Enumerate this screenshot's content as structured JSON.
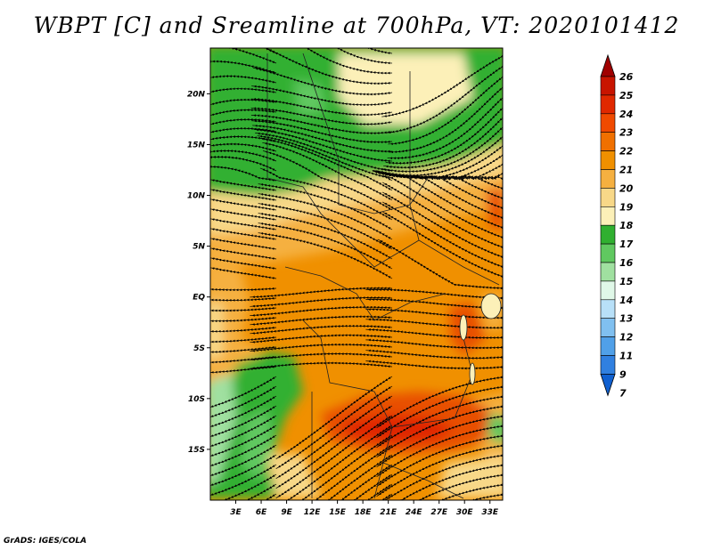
{
  "title": "WBPT [C] and Sreamline at 700hPa, VT: 2020101412",
  "footer": "GrADS: IGES/COLA",
  "map": {
    "lat_labels": [
      "20N",
      "15N",
      "10N",
      "5N",
      "EQ",
      "5S",
      "10S",
      "15S"
    ],
    "lat_values": [
      20,
      15,
      10,
      5,
      0,
      -5,
      -10,
      -15
    ],
    "lon_labels": [
      "3E",
      "6E",
      "9E",
      "12E",
      "15E",
      "18E",
      "21E",
      "24E",
      "27E",
      "30E",
      "33E"
    ],
    "lon_values": [
      3,
      6,
      9,
      12,
      15,
      18,
      21,
      24,
      27,
      30,
      33
    ],
    "lon_range": [
      0,
      34.5
    ],
    "lat_range": [
      -20,
      24.5
    ]
  },
  "colorbar": {
    "labels": [
      "26",
      "25",
      "24",
      "23",
      "22",
      "21",
      "20",
      "19",
      "18",
      "17",
      "16",
      "15",
      "14",
      "13",
      "12",
      "11",
      "9",
      "7"
    ],
    "colors": [
      "#a00000",
      "#c81400",
      "#e02800",
      "#f04a00",
      "#f07000",
      "#f09000",
      "#f5b040",
      "#f8d888",
      "#fcf0b8",
      "#30b030",
      "#60c860",
      "#a0e0a0",
      "#e0f8e8",
      "#b8e0f8",
      "#80c0f0",
      "#50a0e8",
      "#3080e0",
      "#1060d0"
    ]
  },
  "colors": {
    "green_dark": "#30b030",
    "green_mid": "#60c860",
    "green_light": "#a0e0a0",
    "yellow_pale": "#fcf0b8",
    "yellow": "#f8d888",
    "orange_light": "#f5b040",
    "orange": "#f09000",
    "orange_dark": "#f07000",
    "red_orange": "#e85000",
    "red": "#e02800"
  }
}
